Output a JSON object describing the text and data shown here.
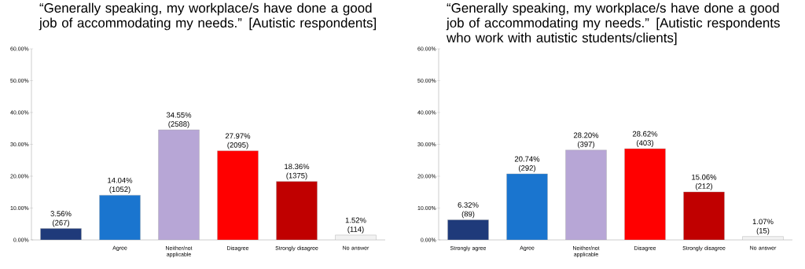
{
  "chart_data": [
    {
      "type": "bar",
      "title": "“Generally speaking, my workplace/s have done a good job of accommodating my needs.” [Autistic respondents]",
      "categories": [
        null,
        "Agree",
        "Neither/not applicable",
        "Disagree",
        "Strongly disagree",
        "No answer"
      ],
      "values": [
        3.56,
        14.04,
        34.55,
        27.97,
        18.36,
        1.52
      ],
      "colors": [
        "#1f3a7a",
        "#1a75cf",
        "#b7a6d6",
        "#ff0000",
        "#c00000",
        "#f2f2f2"
      ],
      "value_labels": [
        "3.56% (267)",
        "14.04% (1052)",
        "34.55% (2588)",
        "27.97% (2095)",
        "18.36% (1375)",
        "1.52% (114)"
      ],
      "ylim": [
        0,
        60
      ],
      "yticks": [
        {
          "value": 0,
          "label": "0.00%"
        },
        {
          "value": 10,
          "label": "10.00%"
        },
        {
          "value": 20,
          "label": "20.00%"
        },
        {
          "value": 30,
          "label": "30.00%"
        },
        {
          "value": 40,
          "label": "40.00%"
        },
        {
          "value": 50,
          "label": "50.00%"
        },
        {
          "value": 60,
          "label": "60.00%"
        }
      ]
    },
    {
      "type": "bar",
      "title": "“Generally speaking, my workplace/s have done a good job of accommodating my needs.” [Autistic respondents who work with autistic students/clients]",
      "categories": [
        "Strongly agree",
        "Agree",
        "Neither/not applicable",
        "Disagree",
        "Strongly disagree",
        "No answer"
      ],
      "values": [
        6.32,
        20.74,
        28.2,
        28.62,
        15.06,
        1.07
      ],
      "colors": [
        "#1f3a7a",
        "#1a75cf",
        "#b7a6d6",
        "#ff0000",
        "#c00000",
        "#f2f2f2"
      ],
      "value_labels": [
        "6.32% (89)",
        "20.74% (292)",
        "28.20% (397)",
        "28.62% (403)",
        "15.06% (212)",
        "1.07% (15)"
      ],
      "ylim": [
        0,
        60
      ],
      "yticks": [
        {
          "value": 0,
          "label": "0.00%"
        },
        {
          "value": 10,
          "label": "10.00%"
        },
        {
          "value": 20,
          "label": "20.00%"
        },
        {
          "value": 30,
          "label": "30.00%"
        },
        {
          "value": 40,
          "label": "40.00%"
        },
        {
          "value": 50,
          "label": "50.00%"
        },
        {
          "value": 60,
          "label": "60.00%"
        }
      ]
    }
  ]
}
